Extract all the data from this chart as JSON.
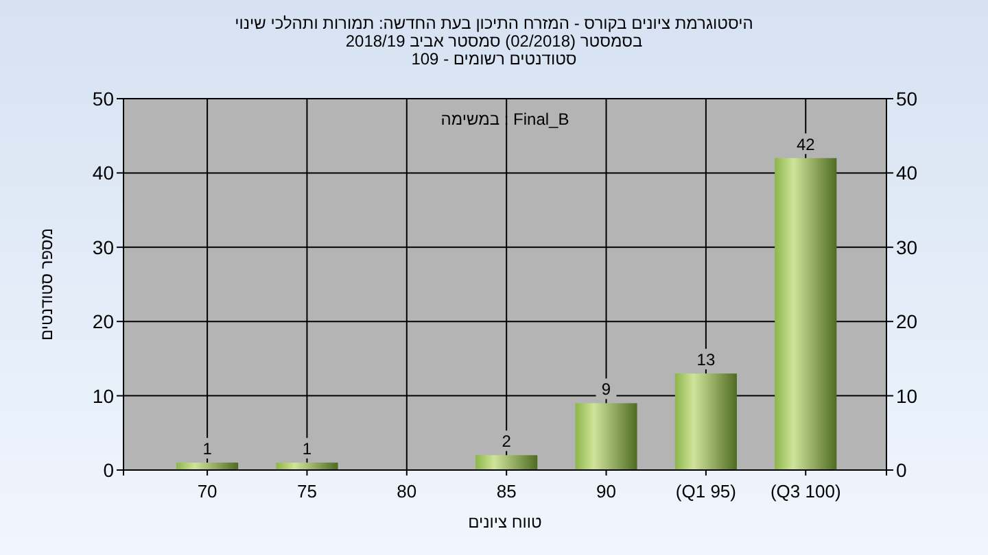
{
  "chart_data": {
    "type": "bar",
    "title": "היסטוגרמת ציונים בקורס - המזרח התיכון בעת החדשה: תמורות ותהלכי שינוי",
    "subtitle": "בסמסטר  (02/2018)  סמסטר אביב 2018/19\nסטודנטים רשומים - 109",
    "xlabel": "טווח ציונים",
    "ylabel": "מספר סטודנטים",
    "annotations": [
      "במשימה : Final_B"
    ],
    "categories": [
      "70",
      "75",
      "80",
      "85",
      "90",
      "(Q1 95)",
      "(Q3 100)"
    ],
    "series": [
      {
        "color": "#8db54a",
        "values": [
          1,
          1,
          0,
          2,
          9,
          13,
          42
        ],
        "value_labels": [
          "1",
          "1",
          null,
          "2",
          "9",
          "13",
          "42"
        ]
      }
    ],
    "ylim": [
      0,
      50
    ],
    "yticks": [
      0,
      10,
      20,
      30,
      40,
      50
    ],
    "y2lim": [
      0,
      50
    ],
    "y2ticks": [
      0,
      10,
      20,
      30,
      40,
      50
    ],
    "grid": true
  }
}
